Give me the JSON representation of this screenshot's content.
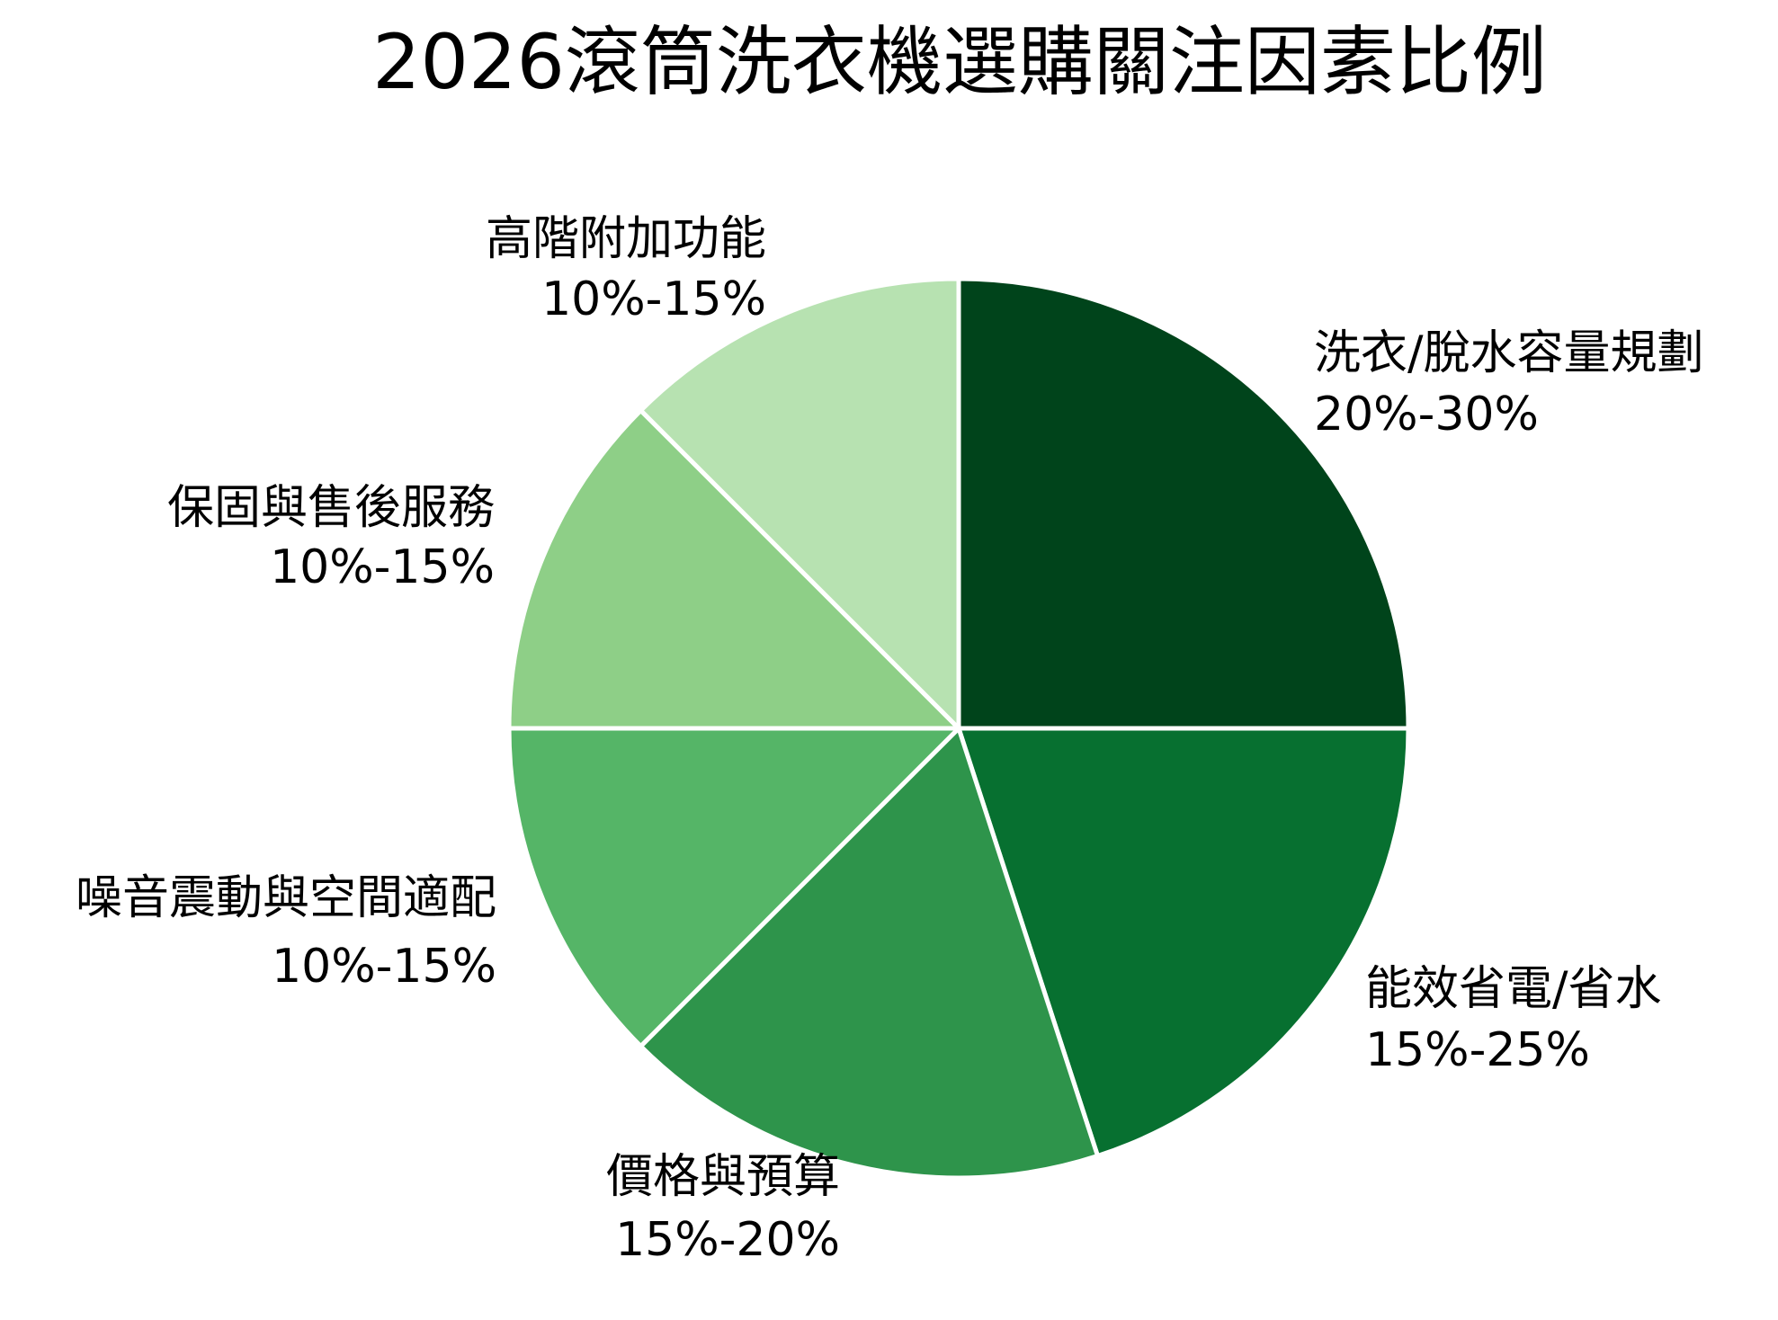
{
  "chart_data": {
    "type": "pie",
    "title": "2026滾筒洗衣機選購關注因素比例",
    "start_angle": "top (12 o'clock), clockwise",
    "slices": [
      {
        "label": "洗衣/脫水容量規劃",
        "range": "20%-30%",
        "value": 25,
        "color": "#00441b"
      },
      {
        "label": "能效省電/省水",
        "range": "15%-25%",
        "value": 20,
        "color": "#077030"
      },
      {
        "label": "價格與預算",
        "range": "15%-20%",
        "value": 17.5,
        "color": "#2e944b"
      },
      {
        "label": "噪音震動與空間適配",
        "range": "10%-15%",
        "value": 12.5,
        "color": "#55b567"
      },
      {
        "label": "保固與售後服務",
        "range": "10%-15%",
        "value": 12.5,
        "color": "#8ecf87"
      },
      {
        "label": "高階附加功能",
        "range": "10%-15%",
        "value": 12.5,
        "color": "#b7e2b1"
      }
    ],
    "legend": "none (labels placed outside slices)"
  }
}
